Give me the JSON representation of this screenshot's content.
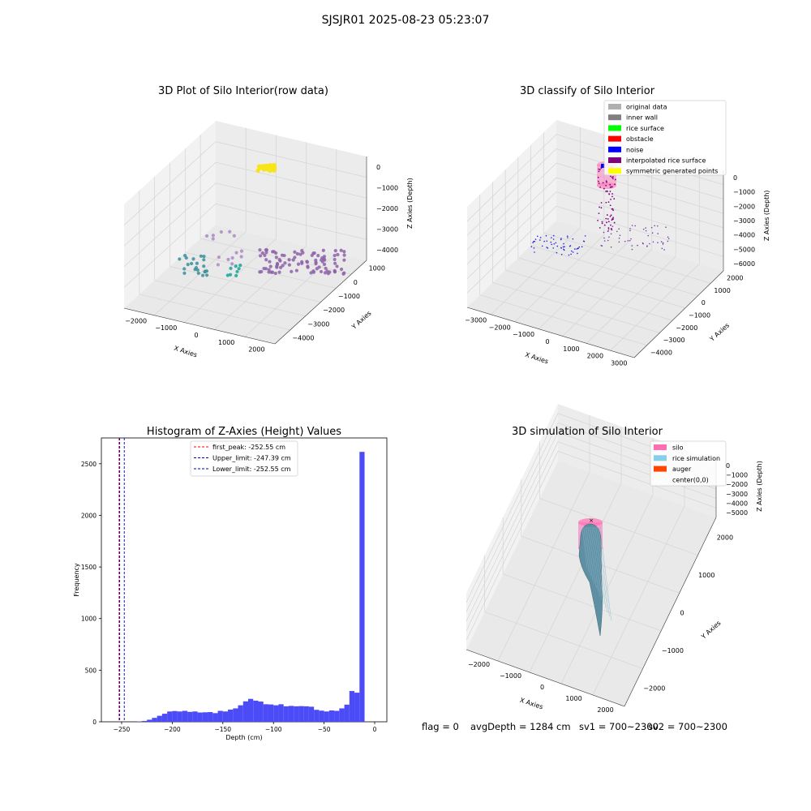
{
  "suptitle": "SJSJR01 2025-08-23 05:23:07",
  "status": {
    "flag": "flag = 0",
    "avg_depth": "avgDepth = 1284 cm",
    "sv1": "sv1 = 700~2300",
    "sv2": "sv2 = 700~2300"
  },
  "colors": {
    "hist_bar": "#4b4bf7",
    "first_peak": "#ff0000",
    "limit_line": "#0000aa",
    "rice_point": "#f7e51a",
    "silo": "#ff6eb4",
    "rice_simulation": "#87ceeb",
    "auger": "#ff4500"
  },
  "chart_data": [
    {
      "id": "raw",
      "type": "scatter3d",
      "title": "3D Plot of Silo Interior(row data)",
      "xlabel": "X Axies",
      "ylabel": "Y Axies",
      "zlabel": "Z Axies (Depth)",
      "x_ticks": [
        "−2000",
        "−1000",
        "0",
        "1000",
        "2000"
      ],
      "y_ticks": [
        "−4000",
        "−3000",
        "−2000",
        "−1000",
        "0",
        "1000"
      ],
      "z_ticks": [
        "0",
        "−1000",
        "−2000",
        "−3000",
        "−4000"
      ],
      "xlim": [
        -2400,
        2400
      ],
      "ylim": [
        -4200,
        1300
      ],
      "zlim": [
        -4500,
        300
      ],
      "grid": true
    },
    {
      "id": "classify",
      "type": "scatter3d",
      "title": "3D classify of Silo Interior",
      "xlabel": "X Axies",
      "ylabel": "Y Axies",
      "zlabel": "Z Axies (Depth)",
      "x_ticks": [
        "−3000",
        "−2000",
        "−1000",
        "0",
        "1000",
        "2000",
        "3000"
      ],
      "y_ticks": [
        "−4000",
        "−3000",
        "−2000",
        "−1000",
        "0",
        "1000",
        "2000"
      ],
      "z_ticks": [
        "0",
        "−1000",
        "−2000",
        "−3000",
        "−4000",
        "−5000",
        "−6000"
      ],
      "legend": [
        "original data",
        "inner wall",
        "rice surface",
        "obstacle",
        "noise",
        "interpolated rice surface",
        "symmetric generated points"
      ],
      "legend_colors": [
        "#b0b0b0",
        "#808080",
        "#00ff00",
        "#ff0000",
        "#0000ff",
        "#800080",
        "#ffff00"
      ],
      "legend_position": "upper right",
      "grid": true
    },
    {
      "id": "hist",
      "type": "histogram",
      "title": "Histogram of Z-Axies (Height) Values",
      "xlabel": "Depth (cm)",
      "ylabel": "Frequency",
      "xlim": [
        -270,
        12
      ],
      "ylim": [
        0,
        2750
      ],
      "x_ticks": [
        -250,
        -200,
        -150,
        -100,
        -50,
        0
      ],
      "y_ticks": [
        0,
        500,
        1000,
        1500,
        2000,
        2500
      ],
      "bin_start": -255,
      "bin_width": 5,
      "counts": [
        0,
        0,
        0,
        0,
        4,
        8,
        20,
        38,
        58,
        78,
        100,
        104,
        100,
        106,
        96,
        100,
        90,
        92,
        94,
        84,
        106,
        100,
        118,
        130,
        160,
        198,
        222,
        205,
        196,
        170,
        168,
        160,
        170,
        150,
        154,
        150,
        152,
        150,
        146,
        116,
        108,
        100,
        110,
        106,
        130,
        166,
        298,
        282,
        2615
      ],
      "vlines": [
        {
          "label": "first_peak: -252.55 cm",
          "value": -252.55,
          "color": "#ff0000"
        },
        {
          "label": "Upper_limit: -247.39 cm",
          "value": -247.39,
          "color": "#0000aa"
        },
        {
          "label": "Lower_limit: -252.55 cm",
          "value": -252.55,
          "color": "#0000aa"
        }
      ],
      "legend_position": "upper center",
      "grid": false
    },
    {
      "id": "sim",
      "type": "surface3d",
      "title": "3D simulation of Silo Interior",
      "xlabel": "X Axies",
      "ylabel": "Y Axies",
      "zlabel": "Z Axies (Depth)",
      "x_ticks": [
        "−2000",
        "−1000",
        "0",
        "1000",
        "2000"
      ],
      "y_ticks": [
        "−2000",
        "−1000",
        "0",
        "1000",
        "2000"
      ],
      "z_ticks": [
        "0",
        "−1000",
        "−2000",
        "−3000",
        "−4000",
        "−5000"
      ],
      "legend": [
        "silo",
        "rice simulation",
        "auger",
        "center(0,0)"
      ],
      "legend_colors": [
        "#ff6eb4",
        "#87ceeb",
        "#ff4500",
        ""
      ],
      "legend_position": "upper right",
      "grid": true
    }
  ]
}
